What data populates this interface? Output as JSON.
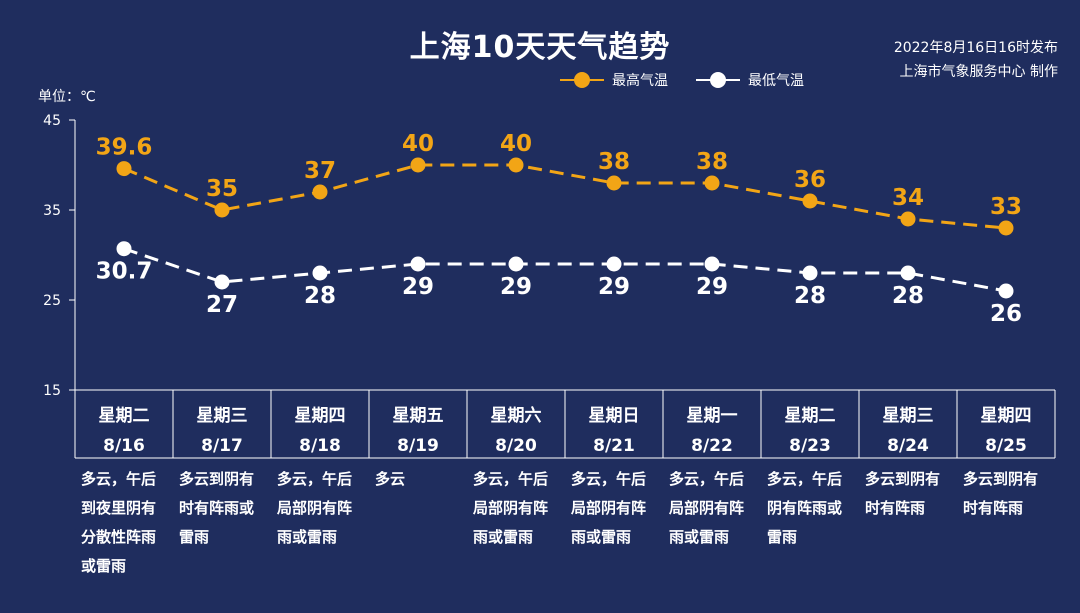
{
  "header": {
    "title": "上海10天天气趋势",
    "publish_line1": "2022年8月16日16时发布",
    "publish_line2": "上海市气象服务中心 制作",
    "unit": "单位：℃"
  },
  "legend": {
    "high_label": "最高气温",
    "low_label": "最低气温"
  },
  "colors": {
    "background": "#1f2d5e",
    "high": "#f2a516",
    "low": "#ffffff",
    "grid": "#ffffff"
  },
  "chart_data": {
    "type": "line",
    "title": "上海10天天气趋势",
    "ylabel": "单位：℃",
    "ylim": [
      15,
      45
    ],
    "yticks": [
      15,
      25,
      35,
      45
    ],
    "x": [
      "8/16",
      "8/17",
      "8/18",
      "8/19",
      "8/20",
      "8/21",
      "8/22",
      "8/23",
      "8/24",
      "8/25"
    ],
    "weekdays": [
      "星期二",
      "星期三",
      "星期四",
      "星期五",
      "星期六",
      "星期日",
      "星期一",
      "星期二",
      "星期三",
      "星期四"
    ],
    "descriptions": [
      [
        "多云，午后",
        "到夜里阴有",
        "分散性阵雨",
        "或雷雨"
      ],
      [
        "多云到阴有",
        "时有阵雨或",
        "雷雨"
      ],
      [
        "多云，午后",
        "局部阴有阵",
        "雨或雷雨"
      ],
      [
        "多云"
      ],
      [
        "多云，午后",
        "局部阴有阵",
        "雨或雷雨"
      ],
      [
        "多云，午后",
        "局部阴有阵",
        "雨或雷雨"
      ],
      [
        "多云，午后",
        "局部阴有阵",
        "雨或雷雨"
      ],
      [
        "多云，午后",
        "阴有阵雨或",
        "雷雨"
      ],
      [
        "多云到阴有",
        "时有阵雨"
      ],
      [
        "多云到阴有",
        "时有阵雨"
      ]
    ],
    "series": [
      {
        "name": "最高气温",
        "values": [
          39.6,
          35,
          37,
          40,
          40,
          38,
          38,
          36,
          34,
          33
        ],
        "labels": [
          "39.6",
          "35",
          "37",
          "40",
          "40",
          "38",
          "38",
          "36",
          "34",
          "33"
        ]
      },
      {
        "name": "最低气温",
        "values": [
          30.7,
          27,
          28,
          29,
          29,
          29,
          29,
          28,
          28,
          26
        ],
        "labels": [
          "30.7",
          "27",
          "28",
          "29",
          "29",
          "29",
          "29",
          "28",
          "28",
          "26"
        ]
      }
    ]
  }
}
